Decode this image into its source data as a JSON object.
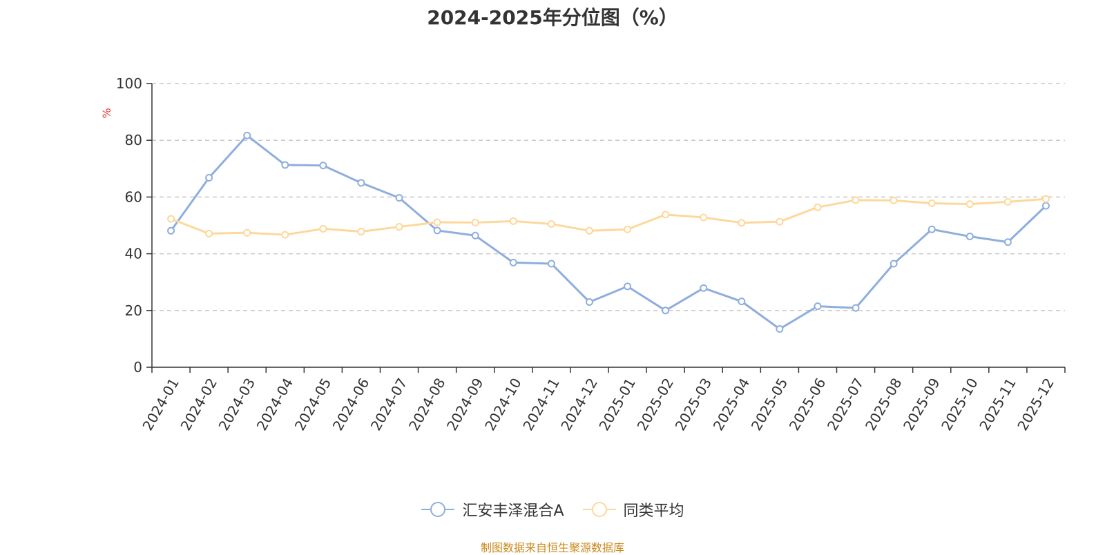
{
  "chart_data": {
    "type": "line",
    "title": "2024-2025年分位图（%）",
    "ylabel": "%",
    "xlabel": "",
    "ylim": [
      0,
      100
    ],
    "yticks": [
      0,
      20,
      40,
      60,
      80,
      100
    ],
    "grid": true,
    "legend_position": "bottom",
    "categories": [
      "2024-01",
      "2024-02",
      "2024-03",
      "2024-04",
      "2024-05",
      "2024-06",
      "2024-07",
      "2024-08",
      "2024-09",
      "2024-10",
      "2024-11",
      "2024-12",
      "2025-01",
      "2025-02",
      "2025-03",
      "2025-04",
      "2025-05",
      "2025-06",
      "2025-07",
      "2025-08",
      "2025-09",
      "2025-10",
      "2025-11",
      "2025-12"
    ],
    "series": [
      {
        "name": "汇安丰泽混合A",
        "color": "#8eaedd",
        "values": [
          48.1,
          66.8,
          81.7,
          71.3,
          71.1,
          65.0,
          59.7,
          48.2,
          46.4,
          36.9,
          36.5,
          23.0,
          28.5,
          20.0,
          27.9,
          23.2,
          13.5,
          21.5,
          20.9,
          36.5,
          48.6,
          46.1,
          44.1,
          56.9
        ]
      },
      {
        "name": "同类平均",
        "color": "#fdd89a",
        "values": [
          52.3,
          47.1,
          47.4,
          46.7,
          48.8,
          47.8,
          49.5,
          51.1,
          51.0,
          51.5,
          50.5,
          48.1,
          48.6,
          53.8,
          52.8,
          50.9,
          51.3,
          56.4,
          58.9,
          58.8,
          57.8,
          57.5,
          58.3,
          59.3
        ]
      }
    ]
  },
  "legend": {
    "series1_label": "汇安丰泽混合A",
    "series2_label": "同类平均"
  },
  "footer": {
    "source": "制图数据来自恒生聚源数据库"
  }
}
